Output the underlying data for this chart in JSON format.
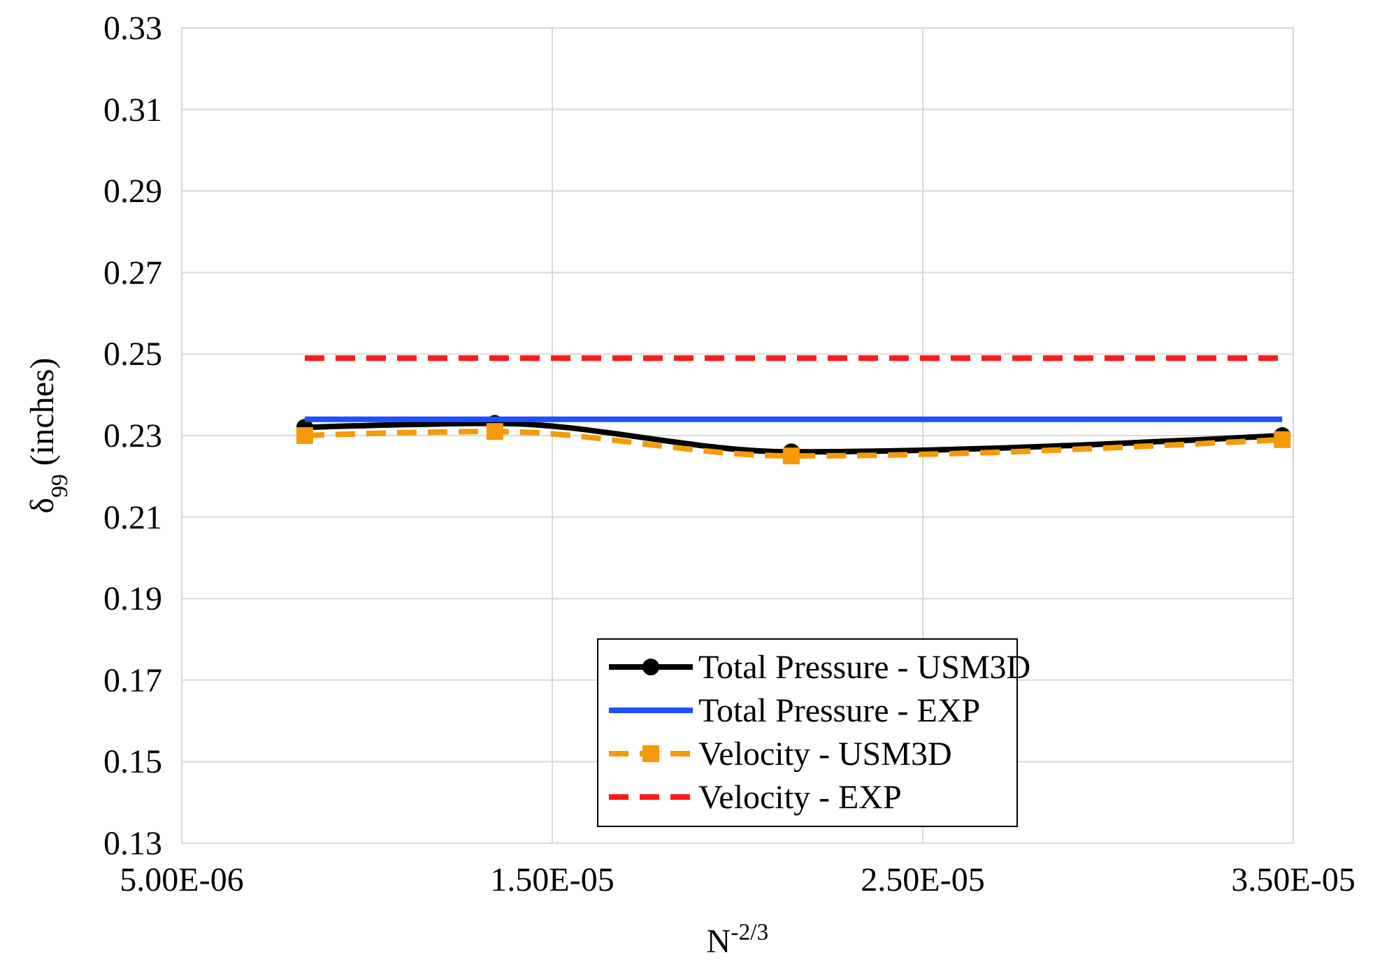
{
  "chart_data": {
    "type": "line",
    "xlabel": "N$^{-2/3}$",
    "ylabel": "δ$_{99}$ (inches)",
    "xlim": [
      5e-06,
      3.5e-05
    ],
    "xticks": [
      {
        "value": 5e-06,
        "label": "5.00E-06"
      },
      {
        "value": 1.5e-05,
        "label": "1.50E-05"
      },
      {
        "value": 2.5e-05,
        "label": "2.50E-05"
      },
      {
        "value": 3.5e-05,
        "label": "3.50E-05"
      }
    ],
    "ylim": [
      0.13,
      0.33
    ],
    "yticks": [
      0.13,
      0.15,
      0.17,
      0.19,
      0.21,
      0.23,
      0.25,
      0.27,
      0.29,
      0.31,
      0.33
    ],
    "grid": true,
    "legend": "bottom",
    "series": [
      {
        "name": "Total Pressure - USM3D",
        "color": "#000000",
        "x": [
          8.32e-06,
          1.345e-05,
          2.145e-05,
          3.47e-05
        ],
        "values": [
          0.232,
          0.233,
          0.226,
          0.23
        ],
        "marker": "circle",
        "line_style": "solid"
      },
      {
        "name": "Total Pressure - EXP",
        "color": "#1f4eff",
        "x": [
          8.32e-06,
          3.47e-05
        ],
        "values": [
          0.234,
          0.234
        ],
        "marker": "none",
        "line_style": "solid"
      },
      {
        "name": "Velocity - USM3D",
        "color": "#f59a0a",
        "x": [
          8.32e-06,
          1.345e-05,
          2.145e-05,
          3.47e-05
        ],
        "values": [
          0.23,
          0.231,
          0.225,
          0.229
        ],
        "marker": "square",
        "line_style": "dashed"
      },
      {
        "name": "Velocity - EXP",
        "color": "#ff1a1a",
        "x": [
          8.32e-06,
          3.47e-05
        ],
        "values": [
          0.249,
          0.249
        ],
        "marker": "none",
        "line_style": "dashed"
      }
    ]
  }
}
